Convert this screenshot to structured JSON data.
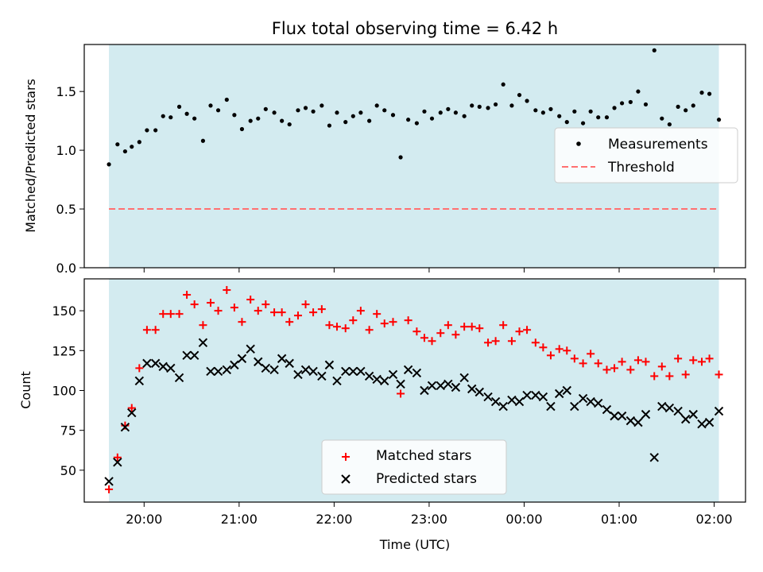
{
  "chart_data": [
    {
      "type": "scatter",
      "title": "Flux total observing time = 6.42 h",
      "xlabel": "",
      "ylabel": "Matched/Predicted stars",
      "x_unit": "hours (UTC, continuing past midnight)",
      "xlim": [
        19.37,
        26.33
      ],
      "ylim": [
        0.0,
        1.9
      ],
      "yticks": [
        0.0,
        0.5,
        1.0,
        1.5
      ],
      "ytick_labels": [
        "0.0",
        "0.5",
        "1.0",
        "1.5"
      ],
      "shaded_span": [
        19.63,
        26.05
      ],
      "threshold": 0.5,
      "legend": {
        "position": "right",
        "entries": [
          "Measurements",
          "Threshold"
        ]
      },
      "colors": {
        "measurements": "#000000",
        "threshold": "#ff7070",
        "span": "#d3ebf0"
      },
      "series": [
        {
          "name": "Measurements",
          "x": [
            19.63,
            19.72,
            19.8,
            19.87,
            19.95,
            20.03,
            20.12,
            20.2,
            20.28,
            20.37,
            20.45,
            20.53,
            20.62,
            20.7,
            20.78,
            20.87,
            20.95,
            21.03,
            21.12,
            21.2,
            21.28,
            21.37,
            21.45,
            21.53,
            21.62,
            21.7,
            21.78,
            21.87,
            21.95,
            22.03,
            22.12,
            22.2,
            22.28,
            22.37,
            22.45,
            22.53,
            22.62,
            22.7,
            22.78,
            22.87,
            22.95,
            23.03,
            23.12,
            23.2,
            23.28,
            23.37,
            23.45,
            23.53,
            23.62,
            23.7,
            23.78,
            23.87,
            23.95,
            24.03,
            24.12,
            24.2,
            24.28,
            24.37,
            24.45,
            24.53,
            24.62,
            24.7,
            24.78,
            24.87,
            24.95,
            25.03,
            25.12,
            25.2,
            25.28,
            25.37,
            25.45,
            25.53,
            25.62,
            25.7,
            25.78,
            25.87,
            25.95,
            26.05
          ],
          "values": [
            0.88,
            1.05,
            0.99,
            1.03,
            1.07,
            1.17,
            1.17,
            1.29,
            1.28,
            1.37,
            1.31,
            1.27,
            1.08,
            1.38,
            1.34,
            1.43,
            1.3,
            1.18,
            1.25,
            1.27,
            1.35,
            1.32,
            1.25,
            1.22,
            1.34,
            1.36,
            1.33,
            1.38,
            1.21,
            1.32,
            1.24,
            1.29,
            1.32,
            1.25,
            1.38,
            1.34,
            1.3,
            0.94,
            1.26,
            1.23,
            1.33,
            1.27,
            1.32,
            1.35,
            1.32,
            1.29,
            1.38,
            1.37,
            1.36,
            1.39,
            1.56,
            1.38,
            1.47,
            1.42,
            1.34,
            1.32,
            1.35,
            1.29,
            1.24,
            1.33,
            1.23,
            1.33,
            1.28,
            1.28,
            1.36,
            1.4,
            1.41,
            1.5,
            1.39,
            1.85,
            1.27,
            1.22,
            1.37,
            1.34,
            1.38,
            1.49,
            1.48,
            1.26
          ]
        }
      ]
    },
    {
      "type": "scatter",
      "title": "",
      "xlabel": "Time (UTC)",
      "ylabel": "Count",
      "x_unit": "hours (UTC, continuing past midnight)",
      "xlim": [
        19.37,
        26.33
      ],
      "ylim": [
        30,
        170
      ],
      "xticks": [
        20,
        21,
        22,
        23,
        24,
        25,
        26
      ],
      "xtick_labels": [
        "20:00",
        "21:00",
        "22:00",
        "23:00",
        "00:00",
        "01:00",
        "02:00"
      ],
      "yticks": [
        50,
        75,
        100,
        125,
        150
      ],
      "ytick_labels": [
        "50",
        "75",
        "100",
        "125",
        "150"
      ],
      "shaded_span": [
        19.63,
        26.05
      ],
      "legend": {
        "position": "bottom-center",
        "entries": [
          "Matched stars",
          "Predicted stars"
        ]
      },
      "colors": {
        "matched": "#ff0000",
        "predicted": "#000000",
        "span": "#d3ebf0"
      },
      "series": [
        {
          "name": "Matched stars",
          "marker": "plus",
          "x": [
            19.63,
            19.72,
            19.8,
            19.87,
            19.95,
            20.03,
            20.12,
            20.2,
            20.28,
            20.37,
            20.45,
            20.53,
            20.62,
            20.7,
            20.78,
            20.87,
            20.95,
            21.03,
            21.12,
            21.2,
            21.28,
            21.37,
            21.45,
            21.53,
            21.62,
            21.7,
            21.78,
            21.87,
            21.95,
            22.03,
            22.12,
            22.2,
            22.28,
            22.37,
            22.45,
            22.53,
            22.62,
            22.7,
            22.78,
            22.87,
            22.95,
            23.03,
            23.12,
            23.2,
            23.28,
            23.37,
            23.45,
            23.53,
            23.62,
            23.7,
            23.78,
            23.87,
            23.95,
            24.03,
            24.12,
            24.2,
            24.28,
            24.37,
            24.45,
            24.53,
            24.62,
            24.7,
            24.78,
            24.87,
            24.95,
            25.03,
            25.12,
            25.2,
            25.28,
            25.37,
            25.45,
            25.53,
            25.62,
            25.7,
            25.78,
            25.87,
            25.95,
            26.05
          ],
          "values": [
            38,
            58,
            78,
            89,
            114,
            138,
            138,
            148,
            148,
            148,
            160,
            154,
            141,
            155,
            150,
            163,
            152,
            143,
            157,
            150,
            154,
            149,
            149,
            143,
            147,
            154,
            149,
            151,
            141,
            140,
            139,
            144,
            150,
            138,
            148,
            142,
            143,
            98,
            144,
            137,
            133,
            131,
            136,
            141,
            135,
            140,
            140,
            139,
            130,
            131,
            141,
            131,
            137,
            138,
            130,
            127,
            122,
            126,
            125,
            120,
            117,
            123,
            117,
            113,
            114,
            118,
            113,
            119,
            118,
            109,
            115,
            109,
            120,
            110,
            119,
            118,
            120,
            110
          ]
        },
        {
          "name": "Predicted stars",
          "marker": "x",
          "x": [
            19.63,
            19.72,
            19.8,
            19.87,
            19.95,
            20.03,
            20.12,
            20.2,
            20.28,
            20.37,
            20.45,
            20.53,
            20.62,
            20.7,
            20.78,
            20.87,
            20.95,
            21.03,
            21.12,
            21.2,
            21.28,
            21.37,
            21.45,
            21.53,
            21.62,
            21.7,
            21.78,
            21.87,
            21.95,
            22.03,
            22.12,
            22.2,
            22.28,
            22.37,
            22.45,
            22.53,
            22.62,
            22.7,
            22.78,
            22.87,
            22.95,
            23.03,
            23.12,
            23.2,
            23.28,
            23.37,
            23.45,
            23.53,
            23.62,
            23.7,
            23.78,
            23.87,
            23.95,
            24.03,
            24.12,
            24.2,
            24.28,
            24.37,
            24.45,
            24.53,
            24.62,
            24.7,
            24.78,
            24.87,
            24.95,
            25.03,
            25.12,
            25.2,
            25.28,
            25.37,
            25.45,
            25.53,
            25.62,
            25.7,
            25.78,
            25.87,
            25.95,
            26.05
          ],
          "values": [
            43,
            55,
            77,
            86,
            106,
            117,
            117,
            115,
            114,
            108,
            122,
            122,
            130,
            112,
            112,
            113,
            116,
            120,
            126,
            118,
            114,
            113,
            120,
            117,
            110,
            113,
            112,
            109,
            116,
            106,
            112,
            112,
            112,
            109,
            107,
            106,
            110,
            104,
            113,
            111,
            100,
            103,
            103,
            104,
            102,
            108,
            101,
            99,
            96,
            93,
            90,
            94,
            93,
            97,
            97,
            96,
            90,
            98,
            100,
            90,
            95,
            93,
            92,
            88,
            84,
            84,
            81,
            80,
            85,
            58,
            90,
            89,
            87,
            82,
            85,
            79,
            80,
            87
          ]
        }
      ]
    }
  ]
}
